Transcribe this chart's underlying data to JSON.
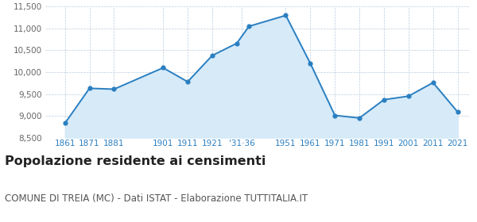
{
  "years": [
    1861,
    1871,
    1881,
    1901,
    1911,
    1921,
    1931,
    1936,
    1951,
    1961,
    1971,
    1981,
    1991,
    2001,
    2011,
    2021
  ],
  "population": [
    8830,
    9630,
    9610,
    10100,
    9780,
    10380,
    10660,
    11050,
    11300,
    10200,
    9010,
    8950,
    9370,
    9450,
    9760,
    9090
  ],
  "tick_positions": [
    1861,
    1871,
    1881,
    1901,
    1911,
    1921,
    1933,
    1951,
    1961,
    1971,
    1981,
    1991,
    2001,
    2011,
    2021
  ],
  "tick_labels": [
    "1861",
    "1871",
    "1881",
    "1901",
    "1911",
    "1921",
    "'31‧36",
    "1951",
    "1961",
    "1971",
    "1981",
    "1991",
    "2001",
    "2011",
    "2021"
  ],
  "line_color": "#2a7fc1",
  "fill_color": "#d6eaf8",
  "marker_color": "#2a7fc1",
  "grid_color": "#bbccdd",
  "background_color": "#ffffff",
  "title": "Popolazione residente ai censimenti",
  "subtitle": "COMUNE DI TREIA (MC) - Dati ISTAT - Elaborazione TUTTITALIA.IT",
  "ylim": [
    8500,
    11500
  ],
  "yticks": [
    8500,
    9000,
    9500,
    10000,
    10500,
    11000,
    11500
  ],
  "xlim_left": 1853,
  "xlim_right": 2026,
  "title_fontsize": 11.5,
  "subtitle_fontsize": 8.5,
  "tick_label_color": "#2a7fc1",
  "ytick_label_color": "#666666"
}
